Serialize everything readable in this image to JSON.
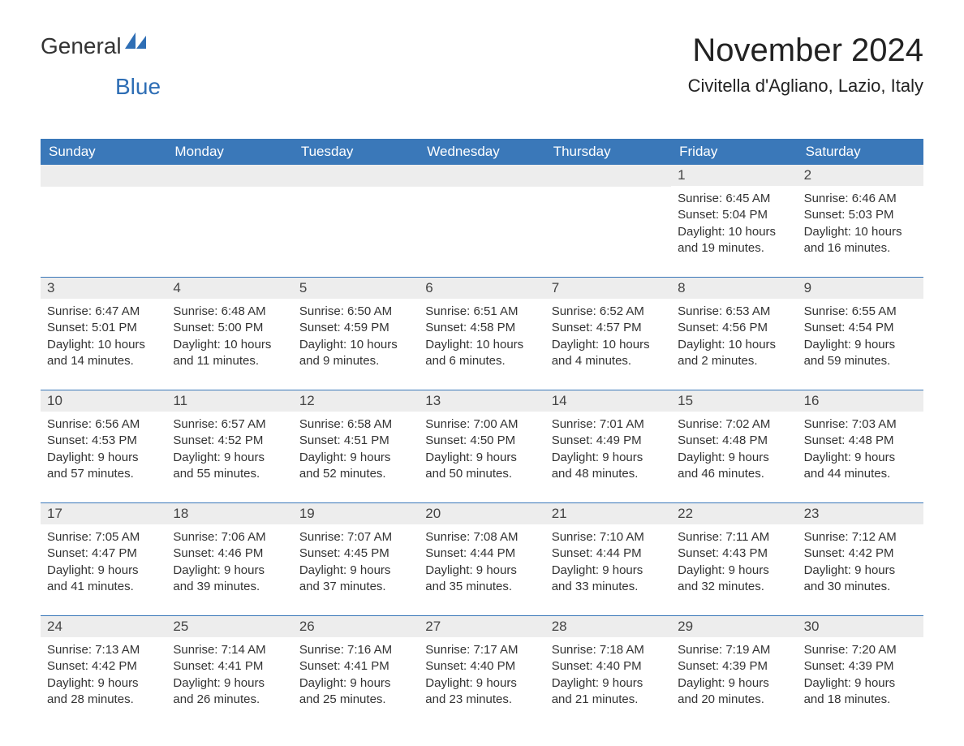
{
  "logo": {
    "main": "General",
    "sub": "Blue",
    "icon_color": "#2e6eb5"
  },
  "title": "November 2024",
  "location": "Civitella d'Agliano, Lazio, Italy",
  "colors": {
    "header_bg": "#3a78b9",
    "header_text": "#ffffff",
    "daynum_bg": "#ededed",
    "text": "#333333",
    "accent": "#2e6eb5",
    "border": "#3a78b9"
  },
  "weekdays": [
    "Sunday",
    "Monday",
    "Tuesday",
    "Wednesday",
    "Thursday",
    "Friday",
    "Saturday"
  ],
  "weeks": [
    [
      {
        "empty": true
      },
      {
        "empty": true
      },
      {
        "empty": true
      },
      {
        "empty": true
      },
      {
        "empty": true
      },
      {
        "day": "1",
        "sunrise": "Sunrise: 6:45 AM",
        "sunset": "Sunset: 5:04 PM",
        "daylight1": "Daylight: 10 hours",
        "daylight2": "and 19 minutes."
      },
      {
        "day": "2",
        "sunrise": "Sunrise: 6:46 AM",
        "sunset": "Sunset: 5:03 PM",
        "daylight1": "Daylight: 10 hours",
        "daylight2": "and 16 minutes."
      }
    ],
    [
      {
        "day": "3",
        "sunrise": "Sunrise: 6:47 AM",
        "sunset": "Sunset: 5:01 PM",
        "daylight1": "Daylight: 10 hours",
        "daylight2": "and 14 minutes."
      },
      {
        "day": "4",
        "sunrise": "Sunrise: 6:48 AM",
        "sunset": "Sunset: 5:00 PM",
        "daylight1": "Daylight: 10 hours",
        "daylight2": "and 11 minutes."
      },
      {
        "day": "5",
        "sunrise": "Sunrise: 6:50 AM",
        "sunset": "Sunset: 4:59 PM",
        "daylight1": "Daylight: 10 hours",
        "daylight2": "and 9 minutes."
      },
      {
        "day": "6",
        "sunrise": "Sunrise: 6:51 AM",
        "sunset": "Sunset: 4:58 PM",
        "daylight1": "Daylight: 10 hours",
        "daylight2": "and 6 minutes."
      },
      {
        "day": "7",
        "sunrise": "Sunrise: 6:52 AM",
        "sunset": "Sunset: 4:57 PM",
        "daylight1": "Daylight: 10 hours",
        "daylight2": "and 4 minutes."
      },
      {
        "day": "8",
        "sunrise": "Sunrise: 6:53 AM",
        "sunset": "Sunset: 4:56 PM",
        "daylight1": "Daylight: 10 hours",
        "daylight2": "and 2 minutes."
      },
      {
        "day": "9",
        "sunrise": "Sunrise: 6:55 AM",
        "sunset": "Sunset: 4:54 PM",
        "daylight1": "Daylight: 9 hours",
        "daylight2": "and 59 minutes."
      }
    ],
    [
      {
        "day": "10",
        "sunrise": "Sunrise: 6:56 AM",
        "sunset": "Sunset: 4:53 PM",
        "daylight1": "Daylight: 9 hours",
        "daylight2": "and 57 minutes."
      },
      {
        "day": "11",
        "sunrise": "Sunrise: 6:57 AM",
        "sunset": "Sunset: 4:52 PM",
        "daylight1": "Daylight: 9 hours",
        "daylight2": "and 55 minutes."
      },
      {
        "day": "12",
        "sunrise": "Sunrise: 6:58 AM",
        "sunset": "Sunset: 4:51 PM",
        "daylight1": "Daylight: 9 hours",
        "daylight2": "and 52 minutes."
      },
      {
        "day": "13",
        "sunrise": "Sunrise: 7:00 AM",
        "sunset": "Sunset: 4:50 PM",
        "daylight1": "Daylight: 9 hours",
        "daylight2": "and 50 minutes."
      },
      {
        "day": "14",
        "sunrise": "Sunrise: 7:01 AM",
        "sunset": "Sunset: 4:49 PM",
        "daylight1": "Daylight: 9 hours",
        "daylight2": "and 48 minutes."
      },
      {
        "day": "15",
        "sunrise": "Sunrise: 7:02 AM",
        "sunset": "Sunset: 4:48 PM",
        "daylight1": "Daylight: 9 hours",
        "daylight2": "and 46 minutes."
      },
      {
        "day": "16",
        "sunrise": "Sunrise: 7:03 AM",
        "sunset": "Sunset: 4:48 PM",
        "daylight1": "Daylight: 9 hours",
        "daylight2": "and 44 minutes."
      }
    ],
    [
      {
        "day": "17",
        "sunrise": "Sunrise: 7:05 AM",
        "sunset": "Sunset: 4:47 PM",
        "daylight1": "Daylight: 9 hours",
        "daylight2": "and 41 minutes."
      },
      {
        "day": "18",
        "sunrise": "Sunrise: 7:06 AM",
        "sunset": "Sunset: 4:46 PM",
        "daylight1": "Daylight: 9 hours",
        "daylight2": "and 39 minutes."
      },
      {
        "day": "19",
        "sunrise": "Sunrise: 7:07 AM",
        "sunset": "Sunset: 4:45 PM",
        "daylight1": "Daylight: 9 hours",
        "daylight2": "and 37 minutes."
      },
      {
        "day": "20",
        "sunrise": "Sunrise: 7:08 AM",
        "sunset": "Sunset: 4:44 PM",
        "daylight1": "Daylight: 9 hours",
        "daylight2": "and 35 minutes."
      },
      {
        "day": "21",
        "sunrise": "Sunrise: 7:10 AM",
        "sunset": "Sunset: 4:44 PM",
        "daylight1": "Daylight: 9 hours",
        "daylight2": "and 33 minutes."
      },
      {
        "day": "22",
        "sunrise": "Sunrise: 7:11 AM",
        "sunset": "Sunset: 4:43 PM",
        "daylight1": "Daylight: 9 hours",
        "daylight2": "and 32 minutes."
      },
      {
        "day": "23",
        "sunrise": "Sunrise: 7:12 AM",
        "sunset": "Sunset: 4:42 PM",
        "daylight1": "Daylight: 9 hours",
        "daylight2": "and 30 minutes."
      }
    ],
    [
      {
        "day": "24",
        "sunrise": "Sunrise: 7:13 AM",
        "sunset": "Sunset: 4:42 PM",
        "daylight1": "Daylight: 9 hours",
        "daylight2": "and 28 minutes."
      },
      {
        "day": "25",
        "sunrise": "Sunrise: 7:14 AM",
        "sunset": "Sunset: 4:41 PM",
        "daylight1": "Daylight: 9 hours",
        "daylight2": "and 26 minutes."
      },
      {
        "day": "26",
        "sunrise": "Sunrise: 7:16 AM",
        "sunset": "Sunset: 4:41 PM",
        "daylight1": "Daylight: 9 hours",
        "daylight2": "and 25 minutes."
      },
      {
        "day": "27",
        "sunrise": "Sunrise: 7:17 AM",
        "sunset": "Sunset: 4:40 PM",
        "daylight1": "Daylight: 9 hours",
        "daylight2": "and 23 minutes."
      },
      {
        "day": "28",
        "sunrise": "Sunrise: 7:18 AM",
        "sunset": "Sunset: 4:40 PM",
        "daylight1": "Daylight: 9 hours",
        "daylight2": "and 21 minutes."
      },
      {
        "day": "29",
        "sunrise": "Sunrise: 7:19 AM",
        "sunset": "Sunset: 4:39 PM",
        "daylight1": "Daylight: 9 hours",
        "daylight2": "and 20 minutes."
      },
      {
        "day": "30",
        "sunrise": "Sunrise: 7:20 AM",
        "sunset": "Sunset: 4:39 PM",
        "daylight1": "Daylight: 9 hours",
        "daylight2": "and 18 minutes."
      }
    ]
  ]
}
